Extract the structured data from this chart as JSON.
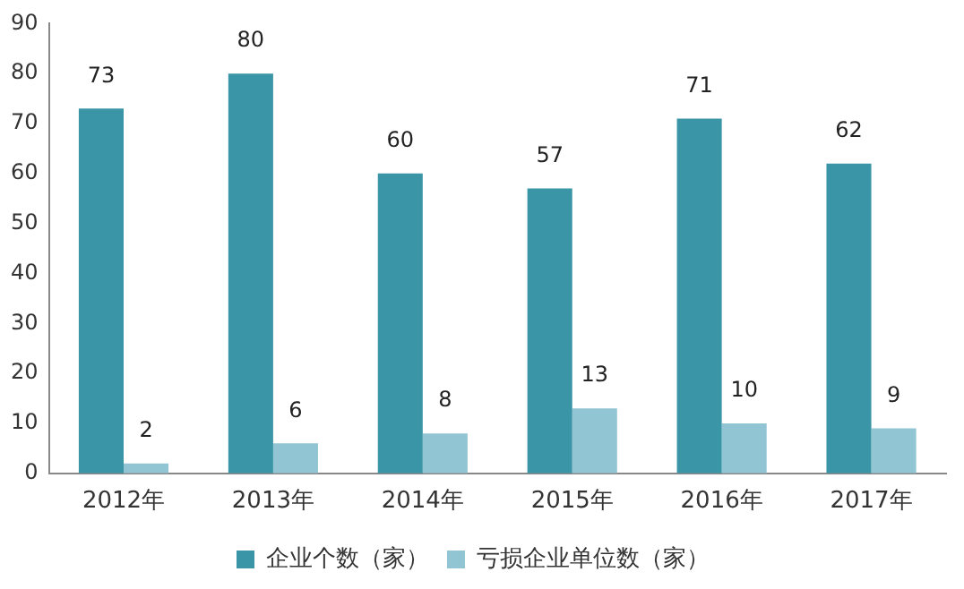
{
  "chart_data": {
    "type": "bar",
    "categories": [
      "2012年",
      "2013年",
      "2014年",
      "2015年",
      "2016年",
      "2017年"
    ],
    "series": [
      {
        "name": "企业个数（家）",
        "color": "#3a95a6",
        "values": [
          73,
          80,
          60,
          57,
          71,
          62
        ]
      },
      {
        "name": "亏损企业单位数（家）",
        "color": "#92c5d3",
        "values": [
          2,
          6,
          8,
          13,
          10,
          9
        ]
      }
    ],
    "ylim": [
      0,
      90
    ],
    "yticks": [
      0,
      10,
      20,
      30,
      40,
      50,
      60,
      70,
      80,
      90
    ],
    "grid": false,
    "legend": "bottom",
    "data_labels": true
  }
}
